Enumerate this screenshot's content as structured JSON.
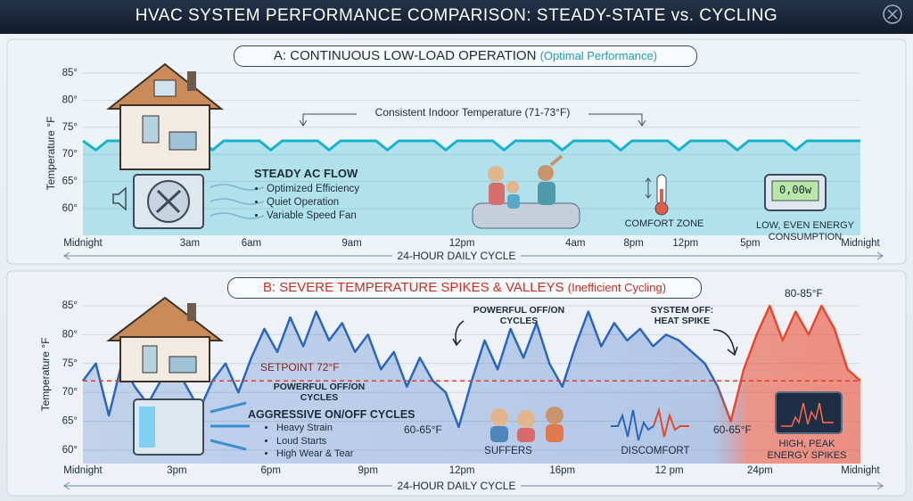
{
  "title": "HVAC SYSTEM PERFORMANCE COMPARISON: STEADY-STATE vs. CYCLING",
  "chart_data": [
    {
      "type": "line",
      "title": "A: CONTINUOUS LOW-LOAD OPERATION",
      "subtitle": "(Optimal Performance)",
      "ylabel": "Temperature °F",
      "xlabel": "24-HOUR DAILY CYCLE",
      "xlim": [
        0,
        24
      ],
      "xticks": [
        {
          "value": 0,
          "label": "Midnight"
        },
        {
          "value": 3.3,
          "label": "3am"
        },
        {
          "value": 5.2,
          "label": "6am"
        },
        {
          "value": 8.3,
          "label": "9am"
        },
        {
          "value": 11.7,
          "label": "12pm"
        },
        {
          "value": 15.2,
          "label": "4am"
        },
        {
          "value": 17,
          "label": "8pm"
        },
        {
          "value": 18.6,
          "label": "12pm"
        },
        {
          "value": 20.6,
          "label": "5pm"
        },
        {
          "value": 24,
          "label": "Midnight"
        }
      ],
      "ylim": [
        60,
        85
      ],
      "yticks": [
        {
          "value": 60,
          "label": "60°"
        },
        {
          "value": 65,
          "label": "65°"
        },
        {
          "value": 70,
          "label": "70°"
        },
        {
          "value": 75,
          "label": "75°"
        },
        {
          "value": 80,
          "label": "80°"
        },
        {
          "value": 85,
          "label": "85°"
        }
      ],
      "grid": true,
      "x": [
        0,
        0.4,
        0.75,
        1.85,
        2.2,
        2.55,
        3.65,
        4.0,
        4.35,
        5.45,
        5.8,
        6.15,
        7.25,
        7.6,
        7.95,
        9.05,
        9.4,
        9.75,
        10.85,
        11.2,
        11.55,
        12.65,
        13.0,
        13.35,
        14.45,
        14.8,
        15.15,
        16.25,
        16.6,
        16.95,
        18.05,
        18.4,
        18.75,
        19.85,
        20.2,
        20.55,
        21.65,
        22.0,
        22.35,
        24
      ],
      "series": [
        {
          "color": "#17b2cb",
          "values": [
            72.5,
            70.8,
            72.5,
            72.5,
            70.8,
            72.5,
            72.5,
            70.8,
            72.5,
            72.5,
            70.8,
            72.5,
            72.5,
            70.8,
            72.5,
            72.5,
            70.8,
            72.5,
            72.5,
            70.8,
            72.5,
            72.5,
            70.8,
            72.5,
            72.5,
            70.8,
            72.5,
            72.5,
            70.8,
            72.5,
            72.5,
            70.8,
            72.5,
            72.5,
            70.8,
            72.5,
            72.5,
            70.8,
            72.5,
            72.5
          ]
        }
      ],
      "annotations": {
        "band": "Consistent Indoor Temperature (71-73°F)",
        "flow_title": "STEADY AC FLOW",
        "flow_points": [
          "Optimized Efficiency",
          "Quiet Operation",
          "Variable Speed Fan"
        ],
        "comfort": "COMFORT ZONE",
        "meter": "0,00w",
        "energy": "LOW, EVEN ENERGY CONSUMPTION"
      }
    },
    {
      "type": "line",
      "title": "B: SEVERE TEMPERATURE SPIKES & VALLEYS",
      "subtitle": "(Inefficient Cycling)",
      "ylabel": "Temperature °F",
      "xlabel": "24-HOUR DAILY CYCLE",
      "xlim": [
        0,
        24
      ],
      "xticks": [
        {
          "value": 0,
          "label": "Midnight"
        },
        {
          "value": 2.9,
          "label": "3pm"
        },
        {
          "value": 5.8,
          "label": "6pm"
        },
        {
          "value": 8.8,
          "label": "9pm"
        },
        {
          "value": 11.7,
          "label": "12pm"
        },
        {
          "value": 14.8,
          "label": "16pm"
        },
        {
          "value": 18.1,
          "label": "12 pm"
        },
        {
          "value": 20.9,
          "label": "24pm"
        },
        {
          "value": 24,
          "label": "Midnight"
        }
      ],
      "ylim": [
        60,
        85
      ],
      "yticks": [
        {
          "value": 60,
          "label": "60°"
        },
        {
          "value": 65,
          "label": "65°"
        },
        {
          "value": 70,
          "label": "70°"
        },
        {
          "value": 75,
          "label": "75°"
        },
        {
          "value": 80,
          "label": "80°"
        },
        {
          "value": 85,
          "label": "85°"
        }
      ],
      "grid": true,
      "setpoint": 72,
      "setpoint_label": "SETPOINT 72°F",
      "peak_color": "#e9482e",
      "x": [
        0,
        0.4,
        0.8,
        1.2,
        1.6,
        2.0,
        2.4,
        2.8,
        3.2,
        3.6,
        4.0,
        4.4,
        4.8,
        5.2,
        5.6,
        6.0,
        6.4,
        6.8,
        7.2,
        7.6,
        8.0,
        8.4,
        8.8,
        9.2,
        9.6,
        10.0,
        10.4,
        10.8,
        11.2,
        11.6,
        12.0,
        12.4,
        12.8,
        13.2,
        13.6,
        14.0,
        14.4,
        14.8,
        15.2,
        15.6,
        16.0,
        16.4,
        16.8,
        17.2,
        17.6,
        18.0,
        18.4,
        18.8,
        19.2,
        19.6,
        20.0,
        20.4,
        20.8,
        21.2,
        21.6,
        22.0,
        22.4,
        22.8,
        23.2,
        23.6,
        24.0
      ],
      "series": [
        {
          "color": "#2a66bf",
          "values": [
            72,
            75,
            66,
            75,
            71,
            68,
            72,
            75,
            71,
            67,
            72,
            75,
            70,
            76,
            81,
            77,
            83,
            78,
            84,
            79,
            82,
            77,
            80,
            74,
            77,
            71,
            76,
            72,
            70,
            64,
            72,
            79,
            74,
            81,
            76,
            82,
            75,
            71,
            78,
            84,
            78,
            82,
            79,
            81,
            78,
            80,
            79,
            77,
            75,
            71,
            65,
            74,
            80,
            85,
            79,
            84,
            80,
            85,
            81,
            74,
            72
          ]
        }
      ],
      "annotations": {
        "cycles_left": "POWERFUL OFF/ON CYCLES",
        "aggressive": "AGGRESSIVE ON/OFF CYCLES",
        "aggressive_points": [
          "Heavy Strain",
          "Loud Starts",
          "High Wear & Tear"
        ],
        "low_left": "60-65°F",
        "cycles_top": "POWERFUL OFF/ON CYCLES",
        "system_off": "SYSTEM OFF: HEAT SPIKE",
        "peak": "80-85°F",
        "low_right": "60-65°F",
        "suffers": "SUFFERS",
        "discomfort": "DISCOMFORT",
        "energy": "HIGH, PEAK ENERGY SPIKES"
      }
    }
  ]
}
